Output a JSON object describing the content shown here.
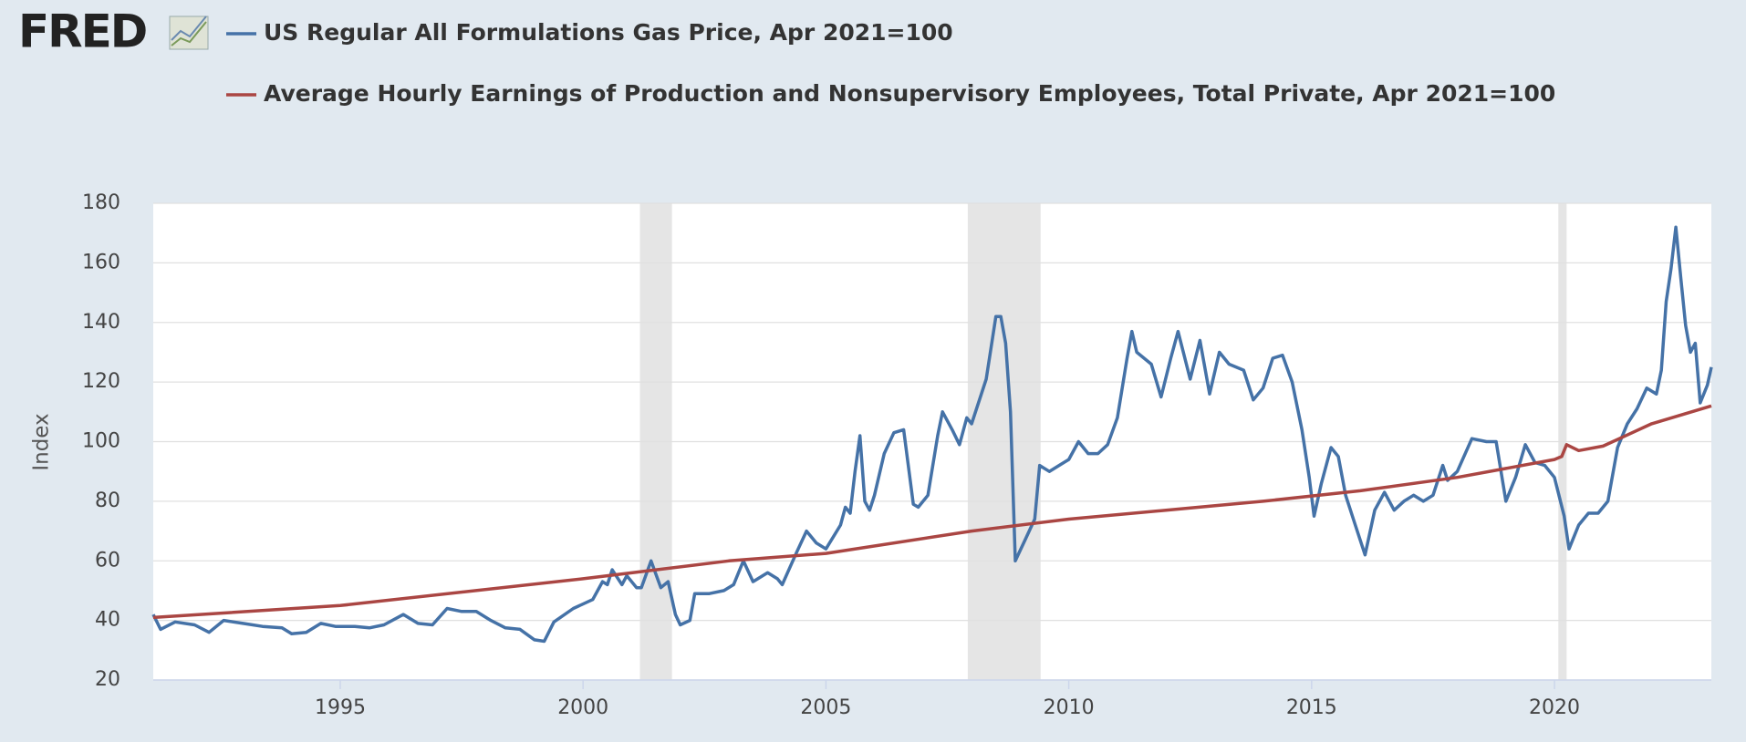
{
  "logo": "FRED",
  "chart_data": {
    "type": "line",
    "ylabel": "Index",
    "xlim": [
      1991.15,
      2023.23
    ],
    "ylim": [
      20,
      180
    ],
    "xticks": [
      1995,
      2000,
      2005,
      2010,
      2015,
      2020
    ],
    "yticks": [
      20,
      40,
      60,
      80,
      100,
      120,
      140,
      160,
      180
    ],
    "grid": true,
    "recessions": [
      [
        2001.17,
        2001.83
      ],
      [
        2007.92,
        2009.42
      ],
      [
        2020.08,
        2020.25
      ]
    ],
    "recession_color": "#e5e5e5",
    "series": [
      {
        "name": "US Regular All Formulations Gas Price, Apr 2021=100",
        "color": "#4572a7",
        "x": [
          1991.15,
          1991.3,
          1991.6,
          1992.0,
          1992.3,
          1992.6,
          1993.0,
          1993.4,
          1993.8,
          1994.0,
          1994.3,
          1994.6,
          1994.9,
          1995.3,
          1995.6,
          1995.9,
          1996.3,
          1996.6,
          1996.9,
          1997.2,
          1997.5,
          1997.8,
          1998.1,
          1998.4,
          1998.7,
          1999.0,
          1999.2,
          1999.4,
          1999.8,
          2000.2,
          2000.4,
          2000.5,
          2000.6,
          2000.8,
          2000.9,
          2001.1,
          2001.2,
          2001.4,
          2001.6,
          2001.75,
          2001.9,
          2002.0,
          2002.2,
          2002.3,
          2002.6,
          2002.9,
          2003.1,
          2003.3,
          2003.5,
          2003.8,
          2004.0,
          2004.1,
          2004.4,
          2004.6,
          2004.8,
          2005.0,
          2005.3,
          2005.4,
          2005.5,
          2005.6,
          2005.7,
          2005.8,
          2005.9,
          2006.0,
          2006.2,
          2006.4,
          2006.6,
          2006.8,
          2006.9,
          2007.1,
          2007.3,
          2007.4,
          2007.6,
          2007.75,
          2007.9,
          2008.0,
          2008.3,
          2008.5,
          2008.6,
          2008.7,
          2008.8,
          2008.9,
          2009.1,
          2009.3,
          2009.4,
          2009.6,
          2009.8,
          2010.0,
          2010.2,
          2010.4,
          2010.6,
          2010.8,
          2011.0,
          2011.2,
          2011.3,
          2011.4,
          2011.7,
          2011.9,
          2012.1,
          2012.25,
          2012.5,
          2012.7,
          2012.9,
          2013.1,
          2013.3,
          2013.6,
          2013.8,
          2014.0,
          2014.2,
          2014.4,
          2014.6,
          2014.8,
          2014.95,
          2015.05,
          2015.2,
          2015.4,
          2015.55,
          2015.7,
          2015.9,
          2016.1,
          2016.3,
          2016.5,
          2016.7,
          2016.9,
          2017.1,
          2017.3,
          2017.5,
          2017.7,
          2017.8,
          2018.0,
          2018.3,
          2018.6,
          2018.8,
          2019.0,
          2019.2,
          2019.4,
          2019.6,
          2019.8,
          2020.0,
          2020.2,
          2020.3,
          2020.5,
          2020.7,
          2020.9,
          2021.1,
          2021.3,
          2021.5,
          2021.7,
          2021.9,
          2022.1,
          2022.2,
          2022.3,
          2022.4,
          2022.5,
          2022.6,
          2022.7,
          2022.8,
          2022.9,
          2023.0,
          2023.15,
          2023.23
        ],
        "values": [
          42,
          37,
          39.5,
          38.5,
          36,
          40,
          39,
          38,
          37.5,
          35.5,
          36,
          39,
          38,
          38,
          37.5,
          38.5,
          42,
          39,
          38.5,
          44,
          43,
          43,
          40,
          37.5,
          37,
          33.5,
          33,
          39.5,
          44,
          47,
          53,
          52,
          57,
          52,
          55,
          51,
          51,
          60,
          51,
          53,
          42,
          38.5,
          40,
          49,
          49,
          50,
          52,
          60,
          53,
          56,
          54,
          52,
          63,
          70,
          66,
          64,
          72,
          78,
          76,
          90,
          102,
          80,
          77,
          82,
          96,
          103,
          104,
          79,
          78,
          82,
          102,
          110,
          104,
          99,
          108,
          106,
          121,
          142,
          142,
          133,
          110,
          60,
          67,
          74,
          92,
          90,
          92,
          94,
          100,
          96,
          96,
          99,
          108,
          128,
          137,
          130,
          126,
          115,
          128,
          137,
          121,
          134,
          116,
          130,
          126,
          124,
          114,
          118,
          128,
          129,
          120,
          104,
          88,
          75,
          86,
          98,
          95,
          82,
          72,
          62,
          77,
          83,
          77,
          80,
          82,
          80,
          82,
          92,
          87,
          90,
          101,
          100,
          100,
          80,
          88,
          99,
          93,
          92,
          88,
          75,
          64,
          72,
          76,
          76,
          80,
          98,
          106,
          111,
          118,
          116,
          124,
          147,
          158,
          172,
          155,
          139,
          130,
          133,
          113,
          119,
          125
        ]
      },
      {
        "name": "Average Hourly Earnings of Production and Nonsupervisory Employees, Total Private, Apr 2021=100",
        "color": "#aa4643",
        "x": [
          1991.15,
          1995,
          2000,
          2003,
          2005,
          2008,
          2010,
          2012,
          2014,
          2016,
          2018,
          2020.0,
          2020.15,
          2020.25,
          2020.5,
          2021,
          2022,
          2023.23
        ],
        "values": [
          41,
          45,
          54,
          60,
          62.5,
          70,
          74,
          77,
          80,
          83.5,
          88,
          94,
          95,
          99,
          97,
          98.5,
          106,
          112
        ]
      }
    ]
  }
}
